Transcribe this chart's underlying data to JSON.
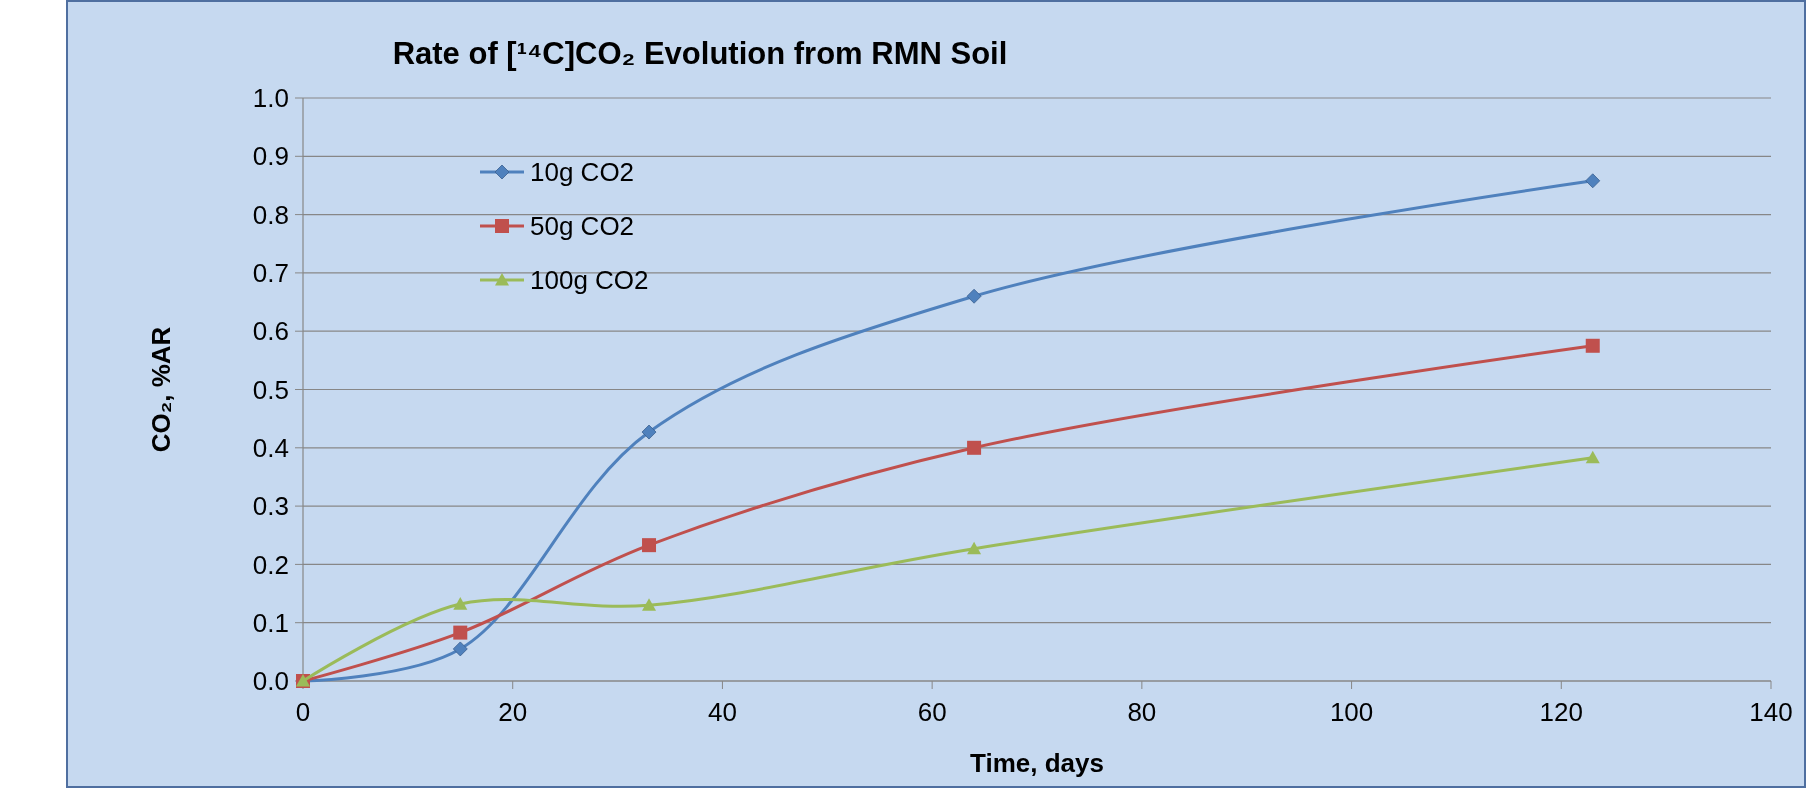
{
  "chart_data": {
    "type": "line",
    "title": "Rate of [¹⁴C]CO₂ Evolution from RMN Soil",
    "xlabel": "Time, days",
    "ylabel": "CO₂, %AR",
    "xlim": [
      0,
      140
    ],
    "xticks": [
      0,
      20,
      40,
      60,
      80,
      100,
      120,
      140
    ],
    "ylim": [
      0,
      1
    ],
    "yticks": [
      {
        "value": 0,
        "label": "0.0"
      },
      {
        "value": 0.1,
        "label": "0.1"
      },
      {
        "value": 0.2,
        "label": "0.2"
      },
      {
        "value": 0.3,
        "label": "0.3"
      },
      {
        "value": 0.4,
        "label": "0.4"
      },
      {
        "value": 0.5,
        "label": "0.5"
      },
      {
        "value": 0.6,
        "label": "0.6"
      },
      {
        "value": 0.7,
        "label": "0.7"
      },
      {
        "value": 0.8,
        "label": "0.8"
      },
      {
        "value": 0.9,
        "label": "0.9"
      },
      {
        "value": 1,
        "label": "1.0"
      }
    ],
    "x": [
      0,
      15,
      33,
      64,
      123
    ],
    "series": [
      {
        "name": "10g CO2",
        "color": "#4f81bd",
        "marker": "diamond",
        "values": [
          0,
          0.055,
          0.427,
          0.66,
          0.858
        ]
      },
      {
        "name": "50g CO2",
        "color": "#c0504d",
        "marker": "square",
        "values": [
          0,
          0.083,
          0.233,
          0.4,
          0.575
        ]
      },
      {
        "name": "100g CO2",
        "color": "#9bbb59",
        "marker": "triangle",
        "values": [
          0,
          0.132,
          0.13,
          0.227,
          0.383
        ]
      }
    ],
    "grid": "y",
    "legend": "top left",
    "line_style": "solid"
  }
}
